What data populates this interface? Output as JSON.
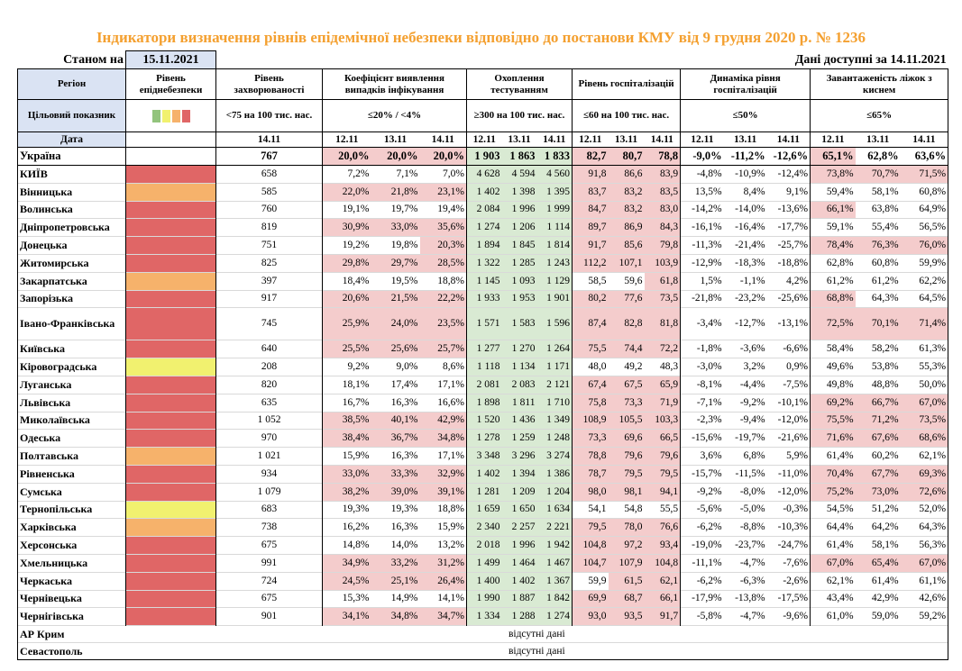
{
  "title": "Індикатори визначення рівнів епідемічної небезпеки відповідно до постанови КМУ від 9 грудня 2020 р. № 1236",
  "status_label": "Станом на",
  "status_date": "15.11.2021",
  "data_available": "Дані доступні за 14.11.2021",
  "headers": {
    "region": "Регіон",
    "target": "Цільовий показник",
    "date": "Дата",
    "level": "Рівень епіднебезпеки",
    "incidence": "Рівень захворюваності",
    "incidence_target": "<75 на 100 тис. нас.",
    "incidence_date": "14.11",
    "positivity": "Коефіцієнт виявлення випадків інфікування",
    "positivity_target": "≤20% / <4%",
    "testing": "Охоплення тестуванням",
    "testing_target": "≥300 на 100 тис. нас.",
    "hosp": "Рівень госпіталізацій",
    "hosp_target": "≤60 на 100 тис. нас.",
    "dynamics": "Динаміка рівня госпіталізацій",
    "dynamics_target": "≤50%",
    "beds": "Завантаженість ліжок з киснем",
    "beds_target": "≤65%",
    "dates": [
      "12.11",
      "13.11",
      "14.11"
    ]
  },
  "colors": {
    "title": "#f4a030",
    "header_bg": "#dae3f3",
    "red": "#e06666",
    "orange": "#f6b26b",
    "yellow": "#f1f16f",
    "green": "#93c47d",
    "bad": "#f4cccc",
    "good": "#d9ead3"
  },
  "legend_swatches": [
    "#93c47d",
    "#f1f16f",
    "#f6b26b",
    "#e06666"
  ],
  "ukraine": {
    "region": "Україна",
    "incidence": "767",
    "positivity": [
      "20,0%",
      "20,0%",
      "20,0%"
    ],
    "testing": [
      "1 903",
      "1 863",
      "1 833"
    ],
    "hosp": [
      "82,7",
      "80,7",
      "78,8"
    ],
    "dynamics": [
      "-9,0%",
      "-11,2%",
      "-12,6%"
    ],
    "beds": [
      "65,1%",
      "62,8%",
      "63,6%"
    ]
  },
  "regions": [
    {
      "name": "КИЇВ",
      "level": "red",
      "incidence": "658",
      "positivity": [
        "7,2%",
        "7,1%",
        "7,0%"
      ],
      "testing": [
        "4 628",
        "4 594",
        "4 560"
      ],
      "hosp": [
        "91,8",
        "86,6",
        "83,9"
      ],
      "dynamics": [
        "-4,8%",
        "-10,9%",
        "-12,4%"
      ],
      "beds": [
        "73,8%",
        "70,7%",
        "71,5%"
      ]
    },
    {
      "name": "Вінницька",
      "level": "orange",
      "incidence": "585",
      "positivity": [
        "22,0%",
        "21,8%",
        "23,1%"
      ],
      "testing": [
        "1 402",
        "1 398",
        "1 395"
      ],
      "hosp": [
        "83,7",
        "83,2",
        "83,5"
      ],
      "dynamics": [
        "13,5%",
        "8,4%",
        "9,1%"
      ],
      "beds": [
        "59,4%",
        "58,1%",
        "60,8%"
      ]
    },
    {
      "name": "Волинська",
      "level": "red",
      "incidence": "760",
      "positivity": [
        "19,1%",
        "19,7%",
        "19,4%"
      ],
      "testing": [
        "2 084",
        "1 996",
        "1 999"
      ],
      "hosp": [
        "84,7",
        "83,2",
        "83,0"
      ],
      "dynamics": [
        "-14,2%",
        "-14,0%",
        "-13,6%"
      ],
      "beds": [
        "66,1%",
        "63,8%",
        "64,9%"
      ]
    },
    {
      "name": "Дніпропетровська",
      "level": "red",
      "incidence": "819",
      "positivity": [
        "30,9%",
        "33,0%",
        "35,6%"
      ],
      "testing": [
        "1 274",
        "1 206",
        "1 114"
      ],
      "hosp": [
        "89,7",
        "86,9",
        "84,3"
      ],
      "dynamics": [
        "-16,1%",
        "-16,4%",
        "-17,7%"
      ],
      "beds": [
        "59,1%",
        "55,4%",
        "56,5%"
      ]
    },
    {
      "name": "Донецька",
      "level": "red",
      "incidence": "751",
      "positivity": [
        "19,2%",
        "19,8%",
        "20,3%"
      ],
      "testing": [
        "1 894",
        "1 845",
        "1 814"
      ],
      "hosp": [
        "91,7",
        "85,6",
        "79,8"
      ],
      "dynamics": [
        "-11,3%",
        "-21,4%",
        "-25,7%"
      ],
      "beds": [
        "78,4%",
        "76,3%",
        "76,0%"
      ]
    },
    {
      "name": "Житомирська",
      "level": "red",
      "incidence": "825",
      "positivity": [
        "29,8%",
        "29,7%",
        "28,5%"
      ],
      "testing": [
        "1 322",
        "1 285",
        "1 243"
      ],
      "hosp": [
        "112,2",
        "107,1",
        "103,9"
      ],
      "dynamics": [
        "-12,9%",
        "-18,3%",
        "-18,8%"
      ],
      "beds": [
        "62,8%",
        "60,8%",
        "59,9%"
      ]
    },
    {
      "name": "Закарпатська",
      "level": "orange",
      "incidence": "397",
      "positivity": [
        "18,4%",
        "19,5%",
        "18,8%"
      ],
      "testing": [
        "1 145",
        "1 093",
        "1 129"
      ],
      "hosp": [
        "58,5",
        "59,6",
        "61,8"
      ],
      "dynamics": [
        "1,5%",
        "-1,1%",
        "4,2%"
      ],
      "beds": [
        "61,2%",
        "61,2%",
        "62,2%"
      ]
    },
    {
      "name": "Запорізька",
      "level": "red",
      "incidence": "917",
      "positivity": [
        "20,6%",
        "21,5%",
        "22,2%"
      ],
      "testing": [
        "1 933",
        "1 953",
        "1 901"
      ],
      "hosp": [
        "80,2",
        "77,6",
        "73,5"
      ],
      "dynamics": [
        "-21,8%",
        "-23,2%",
        "-25,6%"
      ],
      "beds": [
        "68,8%",
        "64,3%",
        "64,5%"
      ]
    },
    {
      "name": "Івано-Франківська",
      "level": "red",
      "incidence": "745",
      "positivity": [
        "25,9%",
        "24,0%",
        "23,5%"
      ],
      "testing": [
        "1 571",
        "1 583",
        "1 596"
      ],
      "hosp": [
        "87,4",
        "82,8",
        "81,8"
      ],
      "dynamics": [
        "-3,4%",
        "-12,7%",
        "-13,1%"
      ],
      "beds": [
        "72,5%",
        "70,1%",
        "71,4%"
      ]
    },
    {
      "name": "Київська",
      "level": "red",
      "incidence": "640",
      "positivity": [
        "25,5%",
        "25,6%",
        "25,7%"
      ],
      "testing": [
        "1 277",
        "1 270",
        "1 264"
      ],
      "hosp": [
        "75,5",
        "74,4",
        "72,2"
      ],
      "dynamics": [
        "-1,8%",
        "-3,6%",
        "-6,6%"
      ],
      "beds": [
        "58,4%",
        "58,2%",
        "61,3%"
      ]
    },
    {
      "name": "Кіровоградська",
      "level": "yellow",
      "incidence": "208",
      "positivity": [
        "9,2%",
        "9,0%",
        "8,6%"
      ],
      "testing": [
        "1 118",
        "1 134",
        "1 171"
      ],
      "hosp": [
        "48,0",
        "49,2",
        "48,3"
      ],
      "dynamics": [
        "-3,0%",
        "3,2%",
        "0,9%"
      ],
      "beds": [
        "49,6%",
        "53,8%",
        "55,3%"
      ]
    },
    {
      "name": "Луганська",
      "level": "red",
      "incidence": "820",
      "positivity": [
        "18,1%",
        "17,4%",
        "17,1%"
      ],
      "testing": [
        "2 081",
        "2 083",
        "2 121"
      ],
      "hosp": [
        "67,4",
        "67,5",
        "65,9"
      ],
      "dynamics": [
        "-8,1%",
        "-4,4%",
        "-7,5%"
      ],
      "beds": [
        "49,8%",
        "48,8%",
        "50,0%"
      ]
    },
    {
      "name": "Львівська",
      "level": "red",
      "incidence": "635",
      "positivity": [
        "16,7%",
        "16,3%",
        "16,6%"
      ],
      "testing": [
        "1 898",
        "1 811",
        "1 710"
      ],
      "hosp": [
        "75,8",
        "73,3",
        "71,9"
      ],
      "dynamics": [
        "-7,1%",
        "-9,2%",
        "-10,1%"
      ],
      "beds": [
        "69,2%",
        "66,7%",
        "67,0%"
      ]
    },
    {
      "name": "Миколаївська",
      "level": "red",
      "incidence": "1 052",
      "positivity": [
        "38,5%",
        "40,1%",
        "42,9%"
      ],
      "testing": [
        "1 520",
        "1 436",
        "1 349"
      ],
      "hosp": [
        "108,9",
        "105,5",
        "103,3"
      ],
      "dynamics": [
        "-2,3%",
        "-9,4%",
        "-12,0%"
      ],
      "beds": [
        "75,5%",
        "71,2%",
        "73,5%"
      ]
    },
    {
      "name": "Одеська",
      "level": "red",
      "incidence": "970",
      "positivity": [
        "38,4%",
        "36,7%",
        "34,8%"
      ],
      "testing": [
        "1 278",
        "1 259",
        "1 248"
      ],
      "hosp": [
        "73,3",
        "69,6",
        "66,5"
      ],
      "dynamics": [
        "-15,6%",
        "-19,7%",
        "-21,6%"
      ],
      "beds": [
        "71,6%",
        "67,6%",
        "68,6%"
      ]
    },
    {
      "name": "Полтавська",
      "level": "orange",
      "incidence": "1 021",
      "positivity": [
        "15,9%",
        "16,3%",
        "17,1%"
      ],
      "testing": [
        "3 348",
        "3 296",
        "3 274"
      ],
      "hosp": [
        "78,8",
        "79,6",
        "79,6"
      ],
      "dynamics": [
        "3,6%",
        "6,8%",
        "5,9%"
      ],
      "beds": [
        "61,4%",
        "60,2%",
        "62,1%"
      ]
    },
    {
      "name": "Рівненська",
      "level": "red",
      "incidence": "934",
      "positivity": [
        "33,0%",
        "33,3%",
        "32,9%"
      ],
      "testing": [
        "1 402",
        "1 394",
        "1 386"
      ],
      "hosp": [
        "78,7",
        "79,5",
        "79,5"
      ],
      "dynamics": [
        "-15,7%",
        "-11,5%",
        "-11,0%"
      ],
      "beds": [
        "70,4%",
        "67,7%",
        "69,3%"
      ]
    },
    {
      "name": "Сумська",
      "level": "red",
      "incidence": "1 079",
      "positivity": [
        "38,2%",
        "39,0%",
        "39,1%"
      ],
      "testing": [
        "1 281",
        "1 209",
        "1 204"
      ],
      "hosp": [
        "98,0",
        "98,1",
        "94,1"
      ],
      "dynamics": [
        "-9,2%",
        "-8,0%",
        "-12,0%"
      ],
      "beds": [
        "75,2%",
        "73,0%",
        "72,6%"
      ]
    },
    {
      "name": "Тернопільська",
      "level": "yellow",
      "incidence": "683",
      "positivity": [
        "19,3%",
        "19,3%",
        "18,8%"
      ],
      "testing": [
        "1 659",
        "1 650",
        "1 634"
      ],
      "hosp": [
        "54,1",
        "54,8",
        "55,5"
      ],
      "dynamics": [
        "-5,6%",
        "-5,0%",
        "-0,3%"
      ],
      "beds": [
        "54,5%",
        "51,2%",
        "52,0%"
      ]
    },
    {
      "name": "Харківська",
      "level": "orange",
      "incidence": "738",
      "positivity": [
        "16,2%",
        "16,3%",
        "15,9%"
      ],
      "testing": [
        "2 340",
        "2 257",
        "2 221"
      ],
      "hosp": [
        "79,5",
        "78,0",
        "76,6"
      ],
      "dynamics": [
        "-6,2%",
        "-8,8%",
        "-10,3%"
      ],
      "beds": [
        "64,4%",
        "64,2%",
        "64,3%"
      ]
    },
    {
      "name": "Херсонська",
      "level": "red",
      "incidence": "675",
      "positivity": [
        "14,8%",
        "14,0%",
        "13,2%"
      ],
      "testing": [
        "2 018",
        "1 996",
        "1 942"
      ],
      "hosp": [
        "104,8",
        "97,2",
        "93,4"
      ],
      "dynamics": [
        "-19,0%",
        "-23,7%",
        "-24,7%"
      ],
      "beds": [
        "61,4%",
        "58,1%",
        "56,3%"
      ]
    },
    {
      "name": "Хмельницька",
      "level": "red",
      "incidence": "991",
      "positivity": [
        "34,9%",
        "33,2%",
        "31,2%"
      ],
      "testing": [
        "1 499",
        "1 464",
        "1 467"
      ],
      "hosp": [
        "104,7",
        "107,9",
        "104,8"
      ],
      "dynamics": [
        "-11,1%",
        "-4,7%",
        "-7,6%"
      ],
      "beds": [
        "67,0%",
        "65,4%",
        "67,0%"
      ]
    },
    {
      "name": "Черкаська",
      "level": "red",
      "incidence": "724",
      "positivity": [
        "24,5%",
        "25,1%",
        "26,4%"
      ],
      "testing": [
        "1 400",
        "1 402",
        "1 367"
      ],
      "hosp": [
        "59,9",
        "61,5",
        "62,1"
      ],
      "dynamics": [
        "-6,2%",
        "-6,3%",
        "-2,6%"
      ],
      "beds": [
        "62,1%",
        "61,4%",
        "61,1%"
      ]
    },
    {
      "name": "Чернівецька",
      "level": "red",
      "incidence": "675",
      "positivity": [
        "15,3%",
        "14,9%",
        "14,1%"
      ],
      "testing": [
        "1 990",
        "1 887",
        "1 842"
      ],
      "hosp": [
        "69,9",
        "68,7",
        "66,1"
      ],
      "dynamics": [
        "-17,9%",
        "-13,8%",
        "-17,5%"
      ],
      "beds": [
        "43,4%",
        "42,9%",
        "42,6%"
      ]
    },
    {
      "name": "Чернігівська",
      "level": "red",
      "incidence": "901",
      "positivity": [
        "34,1%",
        "34,8%",
        "34,7%"
      ],
      "testing": [
        "1 334",
        "1 288",
        "1 274"
      ],
      "hosp": [
        "93,0",
        "93,5",
        "91,7"
      ],
      "dynamics": [
        "-5,8%",
        "-4,7%",
        "-9,6%"
      ],
      "beds": [
        "61,0%",
        "59,0%",
        "59,2%"
      ]
    }
  ],
  "missing": [
    {
      "name": "АР Крим",
      "note": "відсутні дані"
    },
    {
      "name": "Севастополь",
      "note": "відсутні дані"
    }
  ]
}
